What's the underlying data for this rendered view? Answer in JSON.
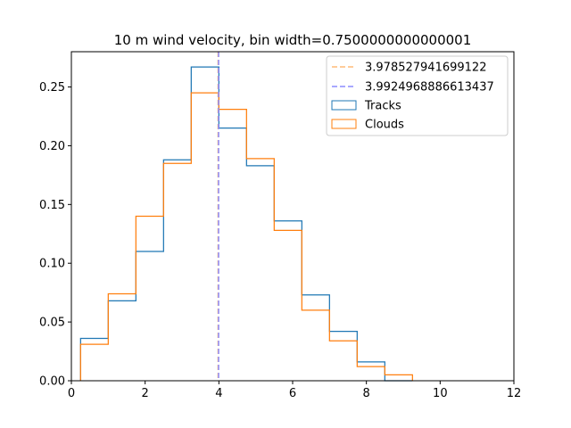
{
  "chart_data": {
    "type": "histogram",
    "title": "10 m wind velocity, bin width=0.7500000000000001",
    "xlabel": "",
    "ylabel": "",
    "xlim": [
      0,
      12
    ],
    "ylim": [
      0,
      0.28
    ],
    "xticks": [
      0,
      2,
      4,
      6,
      8,
      10,
      12
    ],
    "yticks": [
      0.0,
      0.05,
      0.1,
      0.15,
      0.2,
      0.25
    ],
    "ytick_labels": [
      "0.00",
      "0.05",
      "0.10",
      "0.15",
      "0.20",
      "0.25"
    ],
    "grid": false,
    "legend_position": "top-right",
    "bin_edges": [
      0.25,
      1.0,
      1.75,
      2.5,
      3.25,
      4.0,
      4.75,
      5.5,
      6.25,
      7.0,
      7.75,
      8.5,
      9.25
    ],
    "series": [
      {
        "name": "Tracks",
        "color": "#1f77b4",
        "values": [
          0.036,
          0.068,
          0.11,
          0.188,
          0.267,
          0.215,
          0.183,
          0.136,
          0.073,
          0.042,
          0.016,
          0.0
        ]
      },
      {
        "name": "Clouds",
        "color": "#ff7f0e",
        "values": [
          0.031,
          0.074,
          0.14,
          0.185,
          0.245,
          0.231,
          0.189,
          0.128,
          0.06,
          0.034,
          0.012,
          0.005
        ]
      }
    ],
    "vlines": [
      {
        "label": "3.978527941699122",
        "x": 3.978527941699122,
        "color": "#ffbb78",
        "style": "dashed"
      },
      {
        "label": "3.9924968886613437",
        "x": 3.9924968886613437,
        "color": "#8c8cff",
        "style": "dashed"
      }
    ]
  }
}
